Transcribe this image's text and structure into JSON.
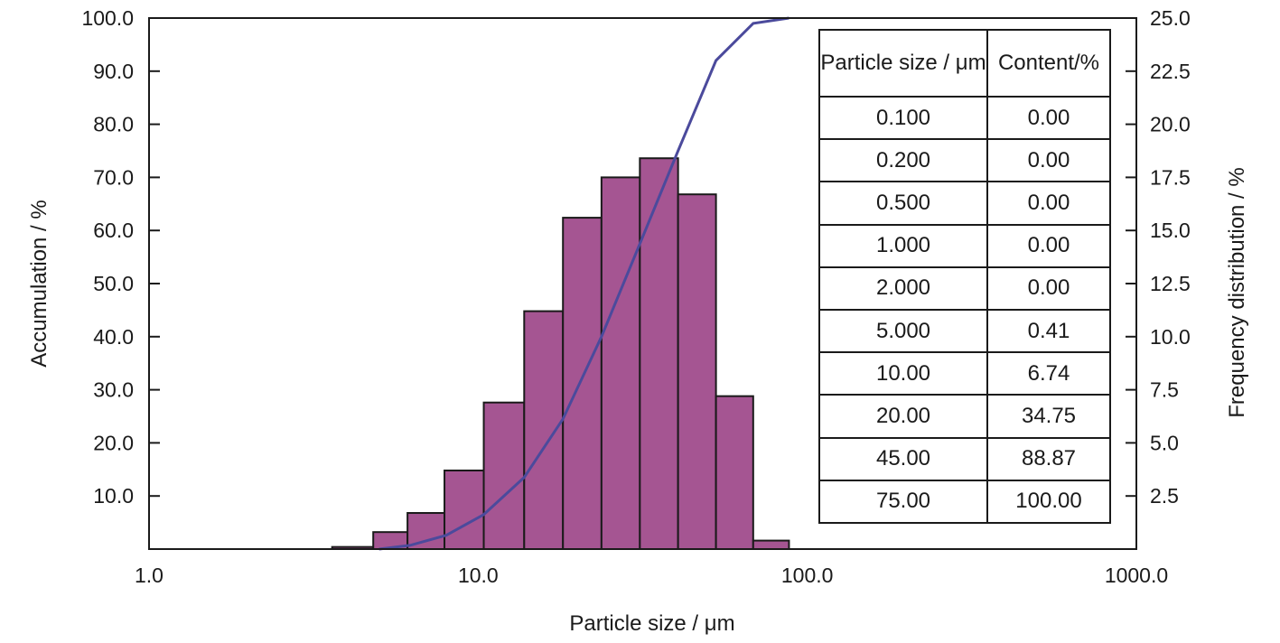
{
  "chart_data": {
    "type": "bar",
    "xlabel": "Particle size / μm",
    "ylabel_left": "Accumulation / %",
    "ylabel_right": "Frequency distribution / %",
    "x_scale": "log",
    "xlim": [
      1.0,
      1000.0
    ],
    "x_ticks": [
      "1.0",
      "10.0",
      "100.0",
      "1000.0"
    ],
    "y_left_lim": [
      0,
      100
    ],
    "y_left_ticks": [
      "10.0",
      "20.0",
      "30.0",
      "40.0",
      "50.0",
      "60.0",
      "70.0",
      "80.0",
      "90.0",
      "100.0"
    ],
    "y_right_lim": [
      0,
      25
    ],
    "y_right_ticks": [
      "2.5",
      "5.0",
      "7.5",
      "10.0",
      "12.5",
      "15.0",
      "17.5",
      "20.0",
      "22.5",
      "25.0"
    ],
    "bar_color": "#a55592",
    "line_color": "#4b4a9c",
    "series": [
      {
        "type": "bar",
        "axis": "right",
        "bins": [
          {
            "from": 3.6,
            "to": 4.8,
            "value": 0.1
          },
          {
            "from": 4.8,
            "to": 6.1,
            "value": 0.8
          },
          {
            "from": 6.1,
            "to": 7.9,
            "value": 1.7
          },
          {
            "from": 7.9,
            "to": 10.4,
            "value": 3.7
          },
          {
            "from": 10.4,
            "to": 13.8,
            "value": 6.9
          },
          {
            "from": 13.8,
            "to": 18.1,
            "value": 11.2
          },
          {
            "from": 18.1,
            "to": 23.7,
            "value": 15.6
          },
          {
            "from": 23.7,
            "to": 31.0,
            "value": 17.5
          },
          {
            "from": 31.0,
            "to": 40.5,
            "value": 18.4
          },
          {
            "from": 40.5,
            "to": 52.8,
            "value": 16.7
          },
          {
            "from": 52.8,
            "to": 68.5,
            "value": 7.2
          },
          {
            "from": 68.5,
            "to": 88.0,
            "value": 0.4
          }
        ]
      },
      {
        "type": "line",
        "axis": "left",
        "x": [
          5.0,
          6.2,
          8.0,
          10.4,
          13.8,
          18.1,
          23.7,
          31.0,
          40.5,
          52.8,
          68.5,
          88.0
        ],
        "y": [
          0.0,
          0.7,
          2.6,
          6.5,
          13.5,
          24.5,
          40.0,
          57.5,
          75.0,
          92.0,
          99.0,
          100.0
        ]
      }
    ]
  },
  "table": {
    "headers": [
      "Particle size / μm",
      "Content/%"
    ],
    "rows": [
      [
        "0.100",
        "0.00"
      ],
      [
        "0.200",
        "0.00"
      ],
      [
        "0.500",
        "0.00"
      ],
      [
        "1.000",
        "0.00"
      ],
      [
        "2.000",
        "0.00"
      ],
      [
        "5.000",
        "0.41"
      ],
      [
        "10.00",
        "6.74"
      ],
      [
        "20.00",
        "34.75"
      ],
      [
        "45.00",
        "88.87"
      ],
      [
        "75.00",
        "100.00"
      ]
    ]
  }
}
